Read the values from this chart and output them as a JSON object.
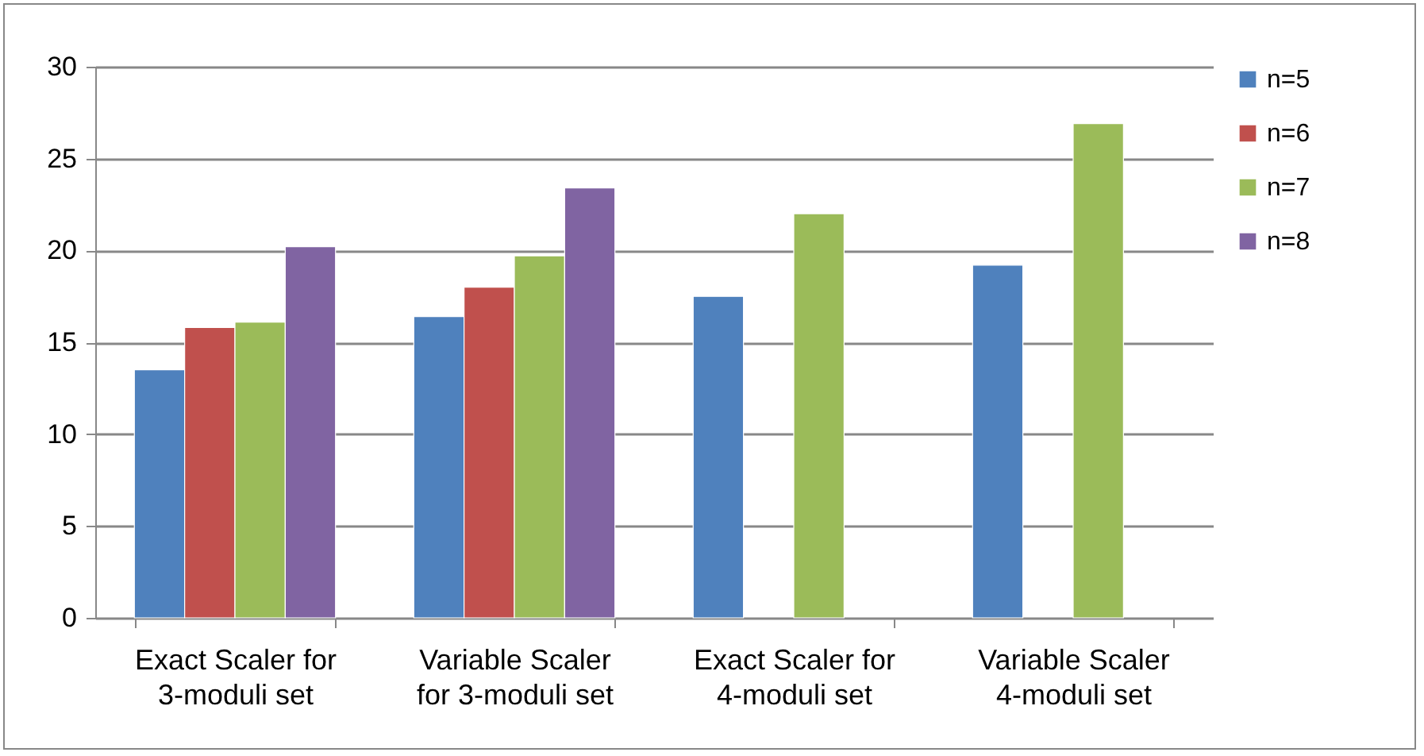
{
  "chart_data": {
    "type": "bar",
    "categories": [
      "Exact Scaler for 3-moduli set",
      "Variable Scaler for 3-moduli set",
      "Exact Scaler for 4-moduli set",
      "Variable Scaler 4-moduli set"
    ],
    "series": [
      {
        "name": "n=5",
        "color": "#4f81bd",
        "values": [
          13.5,
          16.4,
          17.5,
          19.2
        ]
      },
      {
        "name": "n=6",
        "color": "#c0504d",
        "values": [
          15.8,
          18.0,
          null,
          null
        ]
      },
      {
        "name": "n=7",
        "color": "#9bbb59",
        "values": [
          16.1,
          19.7,
          22.0,
          26.9
        ]
      },
      {
        "name": "n=8",
        "color": "#8064a2",
        "values": [
          20.2,
          23.4,
          null,
          null
        ]
      }
    ],
    "ylim": [
      0,
      30
    ],
    "yticks": [
      0,
      5,
      10,
      15,
      20,
      25,
      30
    ],
    "grid": "y",
    "legend": "right"
  }
}
